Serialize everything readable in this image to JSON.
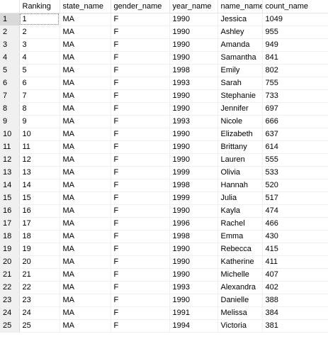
{
  "results_grid": {
    "columns": [
      "",
      "Ranking",
      "state_name",
      "gender_name",
      "year_name",
      "name_name",
      "count_name"
    ],
    "rows": [
      [
        "1",
        "1",
        "MA",
        "F",
        "1990",
        "Jessica",
        "1049"
      ],
      [
        "2",
        "2",
        "MA",
        "F",
        "1990",
        "Ashley",
        "955"
      ],
      [
        "3",
        "3",
        "MA",
        "F",
        "1990",
        "Amanda",
        "949"
      ],
      [
        "4",
        "4",
        "MA",
        "F",
        "1990",
        "Samantha",
        "841"
      ],
      [
        "5",
        "5",
        "MA",
        "F",
        "1998",
        "Emily",
        "802"
      ],
      [
        "6",
        "6",
        "MA",
        "F",
        "1993",
        "Sarah",
        "755"
      ],
      [
        "7",
        "7",
        "MA",
        "F",
        "1990",
        "Stephanie",
        "733"
      ],
      [
        "8",
        "8",
        "MA",
        "F",
        "1990",
        "Jennifer",
        "697"
      ],
      [
        "9",
        "9",
        "MA",
        "F",
        "1993",
        "Nicole",
        "666"
      ],
      [
        "10",
        "10",
        "MA",
        "F",
        "1990",
        "Elizabeth",
        "637"
      ],
      [
        "11",
        "11",
        "MA",
        "F",
        "1990",
        "Brittany",
        "614"
      ],
      [
        "12",
        "12",
        "MA",
        "F",
        "1990",
        "Lauren",
        "555"
      ],
      [
        "13",
        "13",
        "MA",
        "F",
        "1999",
        "Olivia",
        "533"
      ],
      [
        "14",
        "14",
        "MA",
        "F",
        "1998",
        "Hannah",
        "520"
      ],
      [
        "15",
        "15",
        "MA",
        "F",
        "1999",
        "Julia",
        "517"
      ],
      [
        "16",
        "16",
        "MA",
        "F",
        "1990",
        "Kayla",
        "474"
      ],
      [
        "17",
        "17",
        "MA",
        "F",
        "1996",
        "Rachel",
        "466"
      ],
      [
        "18",
        "18",
        "MA",
        "F",
        "1998",
        "Emma",
        "430"
      ],
      [
        "19",
        "19",
        "MA",
        "F",
        "1990",
        "Rebecca",
        "415"
      ],
      [
        "20",
        "20",
        "MA",
        "F",
        "1990",
        "Katherine",
        "411"
      ],
      [
        "21",
        "21",
        "MA",
        "F",
        "1990",
        "Michelle",
        "407"
      ],
      [
        "22",
        "22",
        "MA",
        "F",
        "1993",
        "Alexandra",
        "402"
      ],
      [
        "23",
        "23",
        "MA",
        "F",
        "1990",
        "Danielle",
        "388"
      ],
      [
        "24",
        "24",
        "MA",
        "F",
        "1991",
        "Melissa",
        "384"
      ],
      [
        "25",
        "25",
        "MA",
        "F",
        "1994",
        "Victoria",
        "381"
      ]
    ]
  }
}
